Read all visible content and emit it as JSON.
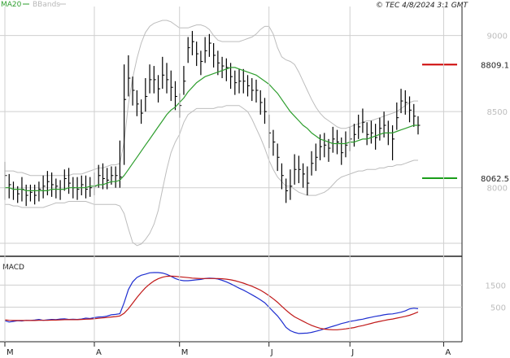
{
  "header": {
    "ma_legend": "MA20",
    "bb_legend": "BBands",
    "timestamp": "© TEC 4/8/2024 3:1 GMT"
  },
  "colors": {
    "price_bars": "#000000",
    "ma20": "#2e9e2e",
    "bbands": "#bdbdbd",
    "resistance": "#cc0000",
    "support": "#1a9e1a",
    "macd": "#1f2fd0",
    "signal": "#c01818",
    "grid": "#cfcfcf",
    "axis_label": "#bdbdbd"
  },
  "chart_data": [
    {
      "type": "ohlc",
      "ylim": [
        7560,
        9180
      ],
      "yticks": [
        8000,
        8500,
        9000
      ],
      "ytick_labels": [
        "8000",
        "8500",
        "9000"
      ],
      "grid": true,
      "month_labels": [
        {
          "label": "M",
          "index": 0
        },
        {
          "label": "A",
          "index": 21
        },
        {
          "label": "M",
          "index": 41
        },
        {
          "label": "J",
          "index": 62
        },
        {
          "label": "J",
          "index": 81
        },
        {
          "label": "A",
          "index": 103
        }
      ],
      "levels": [
        {
          "name": "resistance",
          "value": 8809.1,
          "label": "8809.1"
        },
        {
          "name": "support",
          "value": 8062.5,
          "label": "8062.5"
        }
      ],
      "close": [
        8080,
        8020,
        7990,
        7960,
        7990,
        7950,
        7970,
        7950,
        7990,
        8010,
        8040,
        8020,
        8010,
        7990,
        8060,
        8030,
        8000,
        7990,
        8020,
        7990,
        8000,
        8010,
        8080,
        8060,
        8050,
        8080,
        8080,
        8070,
        8580,
        8720,
        8640,
        8550,
        8490,
        8600,
        8710,
        8710,
        8650,
        8740,
        8710,
        8660,
        8600,
        8540,
        8700,
        8920,
        8960,
        8880,
        8830,
        8900,
        8950,
        8870,
        8820,
        8800,
        8790,
        8730,
        8690,
        8700,
        8700,
        8670,
        8640,
        8640,
        8560,
        8500,
        8360,
        8300,
        8200,
        8080,
        7980,
        8010,
        8120,
        8120,
        8090,
        8030,
        8160,
        8200,
        8270,
        8280,
        8260,
        8320,
        8300,
        8230,
        8280,
        8320,
        8350,
        8400,
        8430,
        8350,
        8360,
        8330,
        8390,
        8410,
        8360,
        8320,
        8460,
        8570,
        8560,
        8510,
        8470,
        8410
      ],
      "high": [
        8170,
        8090,
        8040,
        8010,
        8070,
        8020,
        8020,
        8020,
        8040,
        8080,
        8110,
        8100,
        8060,
        8050,
        8120,
        8130,
        8070,
        8070,
        8080,
        8080,
        8070,
        8100,
        8150,
        8160,
        8130,
        8140,
        8140,
        8310,
        8810,
        8870,
        8730,
        8640,
        8580,
        8720,
        8810,
        8800,
        8740,
        8860,
        8820,
        8770,
        8700,
        8620,
        8800,
        8990,
        9030,
        8960,
        8900,
        8990,
        9010,
        8950,
        8900,
        8860,
        8850,
        8820,
        8770,
        8780,
        8780,
        8740,
        8720,
        8710,
        8640,
        8590,
        8480,
        8380,
        8290,
        8160,
        8060,
        8120,
        8220,
        8210,
        8160,
        8140,
        8240,
        8290,
        8350,
        8360,
        8320,
        8400,
        8380,
        8330,
        8370,
        8400,
        8420,
        8480,
        8520,
        8430,
        8440,
        8420,
        8460,
        8500,
        8440,
        8410,
        8560,
        8650,
        8640,
        8600,
        8550,
        8470
      ],
      "low": [
        7920,
        7930,
        7920,
        7900,
        7910,
        7880,
        7910,
        7890,
        7910,
        7930,
        7950,
        7940,
        7930,
        7920,
        7980,
        7960,
        7930,
        7920,
        7950,
        7930,
        7940,
        7950,
        8000,
        7990,
        7990,
        8020,
        8000,
        8000,
        8150,
        8600,
        8540,
        8470,
        8420,
        8500,
        8620,
        8620,
        8560,
        8650,
        8620,
        8570,
        8510,
        8460,
        8610,
        8820,
        8870,
        8800,
        8740,
        8820,
        8860,
        8790,
        8740,
        8720,
        8700,
        8650,
        8610,
        8620,
        8620,
        8600,
        8570,
        8560,
        8480,
        8420,
        8260,
        8210,
        8110,
        7990,
        7900,
        7920,
        8020,
        8030,
        8000,
        7950,
        8080,
        8110,
        8180,
        8200,
        8170,
        8230,
        8220,
        8150,
        8200,
        8240,
        8270,
        8320,
        8360,
        8280,
        8290,
        8250,
        8310,
        8330,
        8280,
        8180,
        8380,
        8490,
        8480,
        8430,
        8400,
        8350
      ],
      "ma20": [
        8000,
        8000,
        7990,
        7990,
        7990,
        7980,
        7980,
        7980,
        7980,
        7980,
        7980,
        7990,
        7990,
        7990,
        7990,
        8000,
        8000,
        8000,
        8000,
        8000,
        8010,
        8010,
        8020,
        8020,
        8030,
        8040,
        8040,
        8050,
        8080,
        8120,
        8160,
        8200,
        8240,
        8280,
        8320,
        8360,
        8400,
        8440,
        8480,
        8510,
        8530,
        8560,
        8590,
        8630,
        8660,
        8690,
        8710,
        8730,
        8740,
        8750,
        8760,
        8770,
        8780,
        8790,
        8790,
        8780,
        8770,
        8760,
        8750,
        8740,
        8720,
        8700,
        8680,
        8650,
        8620,
        8580,
        8540,
        8500,
        8470,
        8440,
        8410,
        8390,
        8360,
        8340,
        8320,
        8310,
        8300,
        8290,
        8290,
        8290,
        8290,
        8300,
        8300,
        8310,
        8320,
        8320,
        8330,
        8340,
        8350,
        8360,
        8360,
        8360,
        8370,
        8380,
        8390,
        8400,
        8410,
        8410
      ],
      "bb_upper": [
        8110,
        8110,
        8110,
        8100,
        8100,
        8090,
        8080,
        8080,
        8080,
        8080,
        8080,
        8080,
        8080,
        8080,
        8080,
        8080,
        8090,
        8090,
        8090,
        8100,
        8110,
        8120,
        8130,
        8130,
        8140,
        8150,
        8150,
        8160,
        8300,
        8550,
        8720,
        8850,
        8950,
        9020,
        9060,
        9080,
        9090,
        9100,
        9100,
        9090,
        9070,
        9050,
        9050,
        9050,
        9060,
        9070,
        9070,
        9060,
        9040,
        9000,
        8970,
        8960,
        8960,
        8960,
        8960,
        8960,
        8970,
        8980,
        8990,
        9010,
        9040,
        9060,
        9060,
        9010,
        8920,
        8860,
        8840,
        8830,
        8810,
        8760,
        8700,
        8640,
        8580,
        8530,
        8490,
        8460,
        8440,
        8420,
        8400,
        8390,
        8390,
        8400,
        8410,
        8420,
        8430,
        8440,
        8440,
        8450,
        8460,
        8470,
        8480,
        8490,
        8500,
        8520,
        8540,
        8560,
        8570,
        8570
      ],
      "bb_lower": [
        7890,
        7890,
        7880,
        7880,
        7870,
        7870,
        7870,
        7870,
        7870,
        7870,
        7880,
        7890,
        7900,
        7900,
        7900,
        7910,
        7910,
        7910,
        7910,
        7910,
        7900,
        7890,
        7890,
        7890,
        7890,
        7890,
        7890,
        7880,
        7830,
        7730,
        7640,
        7620,
        7630,
        7660,
        7700,
        7760,
        7850,
        7990,
        8120,
        8230,
        8300,
        8350,
        8430,
        8480,
        8500,
        8520,
        8520,
        8520,
        8520,
        8520,
        8530,
        8530,
        8540,
        8540,
        8540,
        8540,
        8520,
        8500,
        8450,
        8390,
        8330,
        8260,
        8180,
        8120,
        8070,
        8040,
        8010,
        8010,
        7990,
        7970,
        7960,
        7950,
        7950,
        7950,
        7960,
        7970,
        7990,
        8020,
        8050,
        8070,
        8080,
        8090,
        8100,
        8110,
        8110,
        8120,
        8120,
        8120,
        8130,
        8130,
        8140,
        8140,
        8150,
        8150,
        8160,
        8170,
        8180,
        8180
      ]
    },
    {
      "type": "line",
      "title": "MACD",
      "ylim": [
        -1000,
        2700
      ],
      "yticks": [
        500,
        1500
      ],
      "ytick_labels": [
        "500",
        "1500"
      ],
      "series": [
        {
          "name": "MACD",
          "values": [
            -120,
            -180,
            -150,
            -120,
            -130,
            -100,
            -110,
            -90,
            -60,
            -100,
            -80,
            -60,
            -70,
            -40,
            -30,
            -60,
            -50,
            -60,
            -40,
            0,
            -20,
            20,
            50,
            60,
            90,
            150,
            170,
            200,
            700,
            1300,
            1650,
            1850,
            1950,
            2000,
            2060,
            2070,
            2070,
            2050,
            1990,
            1900,
            1800,
            1730,
            1700,
            1700,
            1720,
            1740,
            1760,
            1800,
            1820,
            1810,
            1780,
            1720,
            1650,
            1560,
            1460,
            1360,
            1270,
            1170,
            1060,
            950,
            830,
            700,
            500,
            300,
            100,
            -150,
            -420,
            -570,
            -650,
            -700,
            -690,
            -680,
            -650,
            -600,
            -550,
            -490,
            -430,
            -370,
            -310,
            -250,
            -200,
            -150,
            -120,
            -80,
            -50,
            0,
            40,
            80,
            110,
            150,
            180,
            190,
            230,
            270,
            330,
            420,
            450,
            430
          ]
        },
        {
          "name": "Signal",
          "values": [
            -80,
            -100,
            -110,
            -110,
            -110,
            -110,
            -110,
            -110,
            -100,
            -100,
            -100,
            -90,
            -90,
            -80,
            -70,
            -70,
            -70,
            -70,
            -60,
            -50,
            -40,
            -30,
            -10,
            10,
            30,
            50,
            70,
            100,
            220,
            430,
            680,
            940,
            1170,
            1380,
            1550,
            1690,
            1790,
            1860,
            1900,
            1910,
            1900,
            1880,
            1860,
            1840,
            1820,
            1810,
            1800,
            1800,
            1800,
            1800,
            1800,
            1790,
            1770,
            1740,
            1700,
            1650,
            1590,
            1520,
            1450,
            1360,
            1270,
            1150,
            1020,
            880,
            720,
            540,
            360,
            200,
            60,
            -40,
            -140,
            -240,
            -330,
            -400,
            -460,
            -500,
            -520,
            -530,
            -530,
            -510,
            -490,
            -460,
            -430,
            -380,
            -340,
            -290,
            -240,
            -190,
            -150,
            -110,
            -70,
            -40,
            0,
            40,
            80,
            130,
            200,
            280
          ]
        }
      ]
    }
  ]
}
